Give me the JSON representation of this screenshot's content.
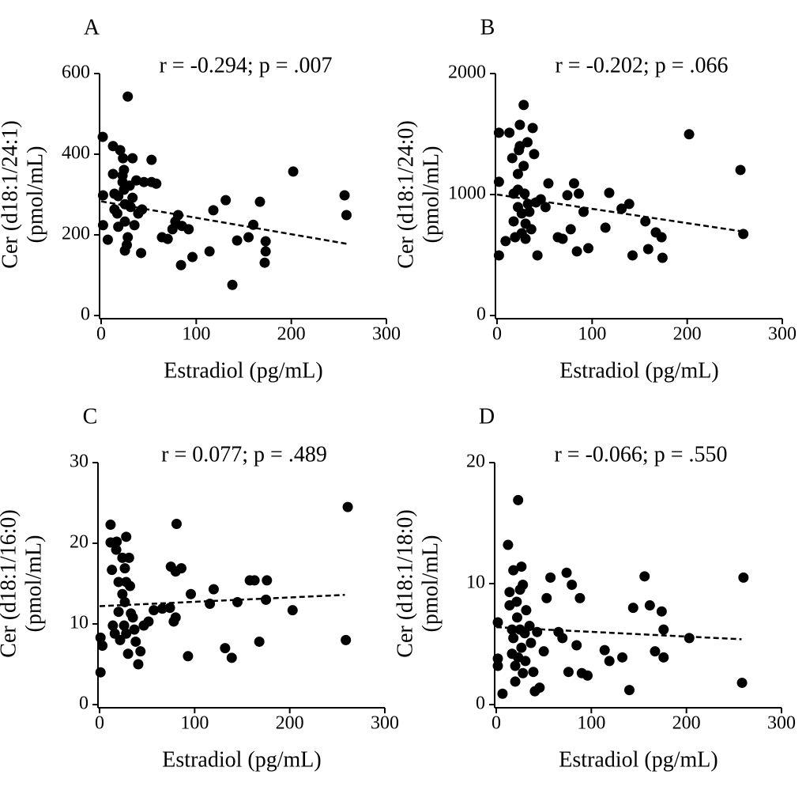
{
  "chart_data": [
    {
      "type": "scatter",
      "panel": "A",
      "annotation": "r = -0.294; p = .007",
      "xlabel": "Estradiol (pg/mL)",
      "ylabel": [
        "Cer (d18:1/24:1)",
        "(pmol/mL)"
      ],
      "color": "#000000",
      "xlim": [
        0,
        300
      ],
      "ylim": [
        0,
        600
      ],
      "xticks": [
        0,
        100,
        200,
        300
      ],
      "yticks": [
        0,
        200,
        400,
        600
      ],
      "x": [
        1.7,
        2,
        2,
        7,
        12.5,
        12.5,
        14,
        14,
        17,
        18,
        18,
        20,
        22.5,
        22.5,
        23,
        24,
        24,
        25,
        25,
        27,
        25,
        28,
        28,
        30,
        31,
        33,
        35,
        33,
        37,
        39,
        42,
        43,
        45,
        53,
        53,
        58,
        64,
        70,
        75,
        78,
        81,
        85,
        84,
        92,
        96,
        114,
        118,
        131,
        138,
        143,
        155,
        160,
        167,
        173,
        173,
        172,
        202,
        256,
        258
      ],
      "y": [
        443,
        298,
        224,
        188,
        420,
        351,
        302,
        263,
        253,
        296,
        220,
        410,
        347,
        331,
        390,
        361,
        312,
        276,
        233,
        175,
        161,
        543,
        194,
        322,
        269,
        292,
        224,
        390,
        335,
        253,
        155,
        263,
        331,
        386,
        331,
        327,
        194,
        190,
        214,
        233,
        249,
        222,
        125,
        214,
        145,
        159,
        261,
        286,
        76,
        186,
        194,
        225,
        282,
        184,
        159,
        131,
        357,
        298,
        249
      ],
      "trendline": {
        "x": [
          0,
          258
        ],
        "y": [
          283,
          178
        ]
      }
    },
    {
      "type": "scatter",
      "panel": "B",
      "annotation": "r = -0.202; p = .066",
      "xlabel": "Estradiol (pg/mL)",
      "ylabel": [
        "Cer (d18:1/24:0)",
        "(pmol/mL)"
      ],
      "color": "#000000",
      "xlim": [
        0,
        300
      ],
      "ylim": [
        0,
        2000
      ],
      "xticks": [
        0,
        100,
        200,
        300
      ],
      "yticks": [
        0,
        1000,
        2000
      ],
      "x": [
        2,
        2,
        2,
        13,
        9,
        16,
        17.5,
        17.5,
        19,
        22,
        22,
        22,
        23,
        24,
        24,
        26,
        26,
        28,
        28,
        29,
        30,
        30,
        32,
        32.5,
        34,
        36,
        37.5,
        39,
        41,
        42.5,
        46,
        51,
        54,
        64,
        69,
        74,
        77.5,
        81,
        84,
        86,
        91,
        96,
        114,
        118,
        131,
        139,
        142.5,
        156,
        159,
        167,
        173,
        174,
        202,
        256,
        259
      ],
      "y": [
        1511,
        1105,
        497,
        1511,
        615,
        1301,
        1007,
        778,
        647,
        1170,
        1040,
        896,
        1367,
        1576,
        1400,
        844,
        680,
        1740,
        1236,
        1007,
        759,
        634,
        1432,
        922,
        857,
        713,
        1550,
        1334,
        935,
        497,
        961,
        896,
        1092,
        647,
        634,
        994,
        713,
        1092,
        530,
        1007,
        857,
        556,
        726,
        1014,
        883,
        922,
        497,
        778,
        549,
        687,
        647,
        477,
        1498,
        1203,
        674
      ],
      "trendline": {
        "x": [
          0,
          258
        ],
        "y": [
          1000,
          695
        ]
      }
    },
    {
      "type": "scatter",
      "panel": "C",
      "annotation": "r = 0.077; p = .489",
      "xlabel": "Estradiol (pg/mL)",
      "ylabel": [
        "Cer (d18:1/16:0)",
        "(pmol/mL)"
      ],
      "color": "#000000",
      "xlim": [
        0,
        300
      ],
      "ylim": [
        0,
        30
      ],
      "xticks": [
        0,
        100,
        200,
        300
      ],
      "yticks": [
        0,
        10,
        20,
        30
      ],
      "x": [
        1,
        1,
        3,
        11.6,
        11.6,
        13,
        14,
        16,
        18,
        17.5,
        20,
        20,
        21.6,
        24,
        24,
        25.8,
        26.6,
        26.6,
        28,
        28,
        28,
        30,
        31,
        32,
        33,
        35,
        36.6,
        38,
        40.7,
        43,
        46.5,
        51.5,
        57,
        66,
        74,
        78,
        80,
        75,
        81,
        86,
        80,
        93,
        96,
        116,
        120,
        132,
        139,
        145,
        158,
        163,
        168,
        175,
        176,
        203,
        259,
        261
      ],
      "y": [
        4.0,
        8.3,
        7.3,
        22.3,
        20.1,
        16.7,
        9.8,
        8.8,
        20.2,
        19.2,
        15.2,
        11.5,
        8.0,
        18.2,
        13.7,
        9.8,
        16.9,
        12.7,
        20.8,
        15.2,
        8.8,
        6.3,
        18.2,
        14.7,
        11.3,
        10.8,
        9.3,
        7.8,
        5.0,
        6.6,
        9.8,
        10.3,
        11.7,
        11.9,
        12.0,
        10.3,
        10.8,
        17.1,
        22.4,
        16.9,
        16.5,
        6.0,
        13.7,
        12.5,
        14.3,
        7.0,
        5.8,
        12.7,
        15.4,
        15.4,
        7.8,
        13.0,
        15.4,
        11.7,
        8.0,
        24.5
      ],
      "trendline": {
        "x": [
          0,
          258
        ],
        "y": [
          12.2,
          13.6
        ]
      }
    },
    {
      "type": "scatter",
      "panel": "D",
      "annotation": "r = -0.066; p = .550",
      "xlabel": "Estradiol (pg/mL)",
      "ylabel": [
        "Cer (d18:1/18:0)",
        "(pmol/mL)"
      ],
      "color": "#000000",
      "xlim": [
        0,
        300
      ],
      "ylim": [
        0,
        20
      ],
      "xticks": [
        0,
        100,
        200,
        300
      ],
      "yticks": [
        0,
        10,
        20
      ],
      "x": [
        1.7,
        1.7,
        1.7,
        6.6,
        12.4,
        14,
        14,
        16.6,
        16.6,
        18,
        18,
        20,
        20,
        21.5,
        22,
        23,
        23,
        25,
        25,
        26.5,
        26.5,
        28,
        28,
        30,
        30.7,
        31.5,
        35,
        36.5,
        39,
        40.6,
        43,
        45.6,
        50,
        53,
        57,
        65.5,
        69.6,
        74,
        76,
        79.5,
        84.5,
        88,
        90,
        96,
        114,
        119,
        132.6,
        140,
        144,
        156,
        161.5,
        167,
        174,
        176,
        176,
        203,
        258.5,
        260
      ],
      "y": [
        6.8,
        3.8,
        3.2,
        0.9,
        13.2,
        9.3,
        8.2,
        6.2,
        4.2,
        11.1,
        5.5,
        3.2,
        1.9,
        8.5,
        7.2,
        16.9,
        3.9,
        9.5,
        6.2,
        11.4,
        4.7,
        2.6,
        9.9,
        5.9,
        3.6,
        7.8,
        6.5,
        5.1,
        2.7,
        1.1,
        6.0,
        1.4,
        4.4,
        8.8,
        10.5,
        6.0,
        5.5,
        10.9,
        2.7,
        9.9,
        4.9,
        8.8,
        2.6,
        2.4,
        4.5,
        3.6,
        3.9,
        1.2,
        8.0,
        10.6,
        8.2,
        4.4,
        7.7,
        6.2,
        3.9,
        5.5,
        1.8,
        10.5
      ],
      "trendline": {
        "x": [
          0,
          258
        ],
        "y": [
          6.4,
          5.4
        ]
      }
    }
  ]
}
